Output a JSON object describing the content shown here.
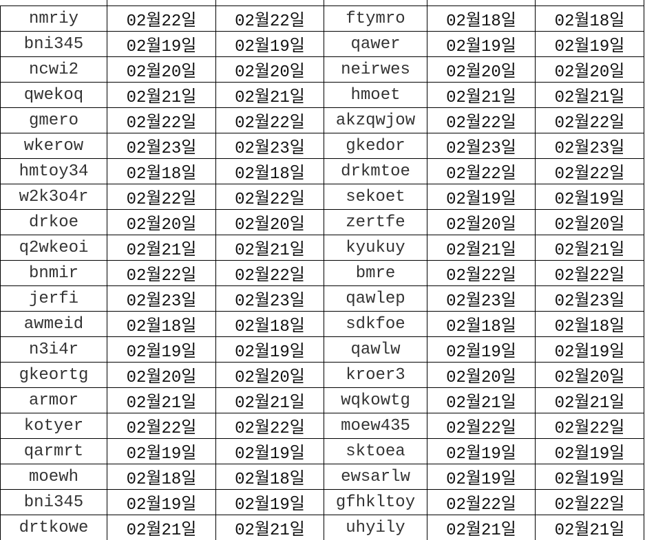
{
  "table": {
    "rows": [
      [
        "nmriy",
        "02월22일",
        "02월22일",
        "ftymro",
        "02월18일",
        "02월18일"
      ],
      [
        "bni345",
        "02월19일",
        "02월19일",
        "qawer",
        "02월19일",
        "02월19일"
      ],
      [
        "ncwi2",
        "02월20일",
        "02월20일",
        "neirwes",
        "02월20일",
        "02월20일"
      ],
      [
        "qwekoq",
        "02월21일",
        "02월21일",
        "hmoet",
        "02월21일",
        "02월21일"
      ],
      [
        "gmero",
        "02월22일",
        "02월22일",
        "akzqwjow",
        "02월22일",
        "02월22일"
      ],
      [
        "wkerow",
        "02월23일",
        "02월23일",
        "gkedor",
        "02월23일",
        "02월23일"
      ],
      [
        "hmtoy34",
        "02월18일",
        "02월18일",
        "drkmtoe",
        "02월22일",
        "02월22일"
      ],
      [
        "w2k3o4r",
        "02월22일",
        "02월22일",
        "sekoet",
        "02월19일",
        "02월19일"
      ],
      [
        "drkoe",
        "02월20일",
        "02월20일",
        "zertfe",
        "02월20일",
        "02월20일"
      ],
      [
        "q2wkeoi",
        "02월21일",
        "02월21일",
        "kyukuy",
        "02월21일",
        "02월21일"
      ],
      [
        "bnmir",
        "02월22일",
        "02월22일",
        "bmre",
        "02월22일",
        "02월22일"
      ],
      [
        "jerfi",
        "02월23일",
        "02월23일",
        "qawlep",
        "02월23일",
        "02월23일"
      ],
      [
        "awmeid",
        "02월18일",
        "02월18일",
        "sdkfoe",
        "02월18일",
        "02월18일"
      ],
      [
        "n3i4r",
        "02월19일",
        "02월19일",
        "qawlw",
        "02월19일",
        "02월19일"
      ],
      [
        "gkeortg",
        "02월20일",
        "02월20일",
        "kroer3",
        "02월20일",
        "02월20일"
      ],
      [
        "armor",
        "02월21일",
        "02월21일",
        "wqkowtg",
        "02월21일",
        "02월21일"
      ],
      [
        "kotyer",
        "02월22일",
        "02월22일",
        "moew435",
        "02월22일",
        "02월22일"
      ],
      [
        "qarmrt",
        "02월19일",
        "02월19일",
        "sktoea",
        "02월19일",
        "02월19일"
      ],
      [
        "moewh",
        "02월18일",
        "02월18일",
        "ewsarlw",
        "02월19일",
        "02월19일"
      ],
      [
        "bni345",
        "02월19일",
        "02월19일",
        "gfhkltoy",
        "02월22일",
        "02월22일"
      ],
      [
        "drtkowe",
        "02월21일",
        "02월21일",
        "uhyily",
        "02월21일",
        "02월21일"
      ]
    ]
  }
}
